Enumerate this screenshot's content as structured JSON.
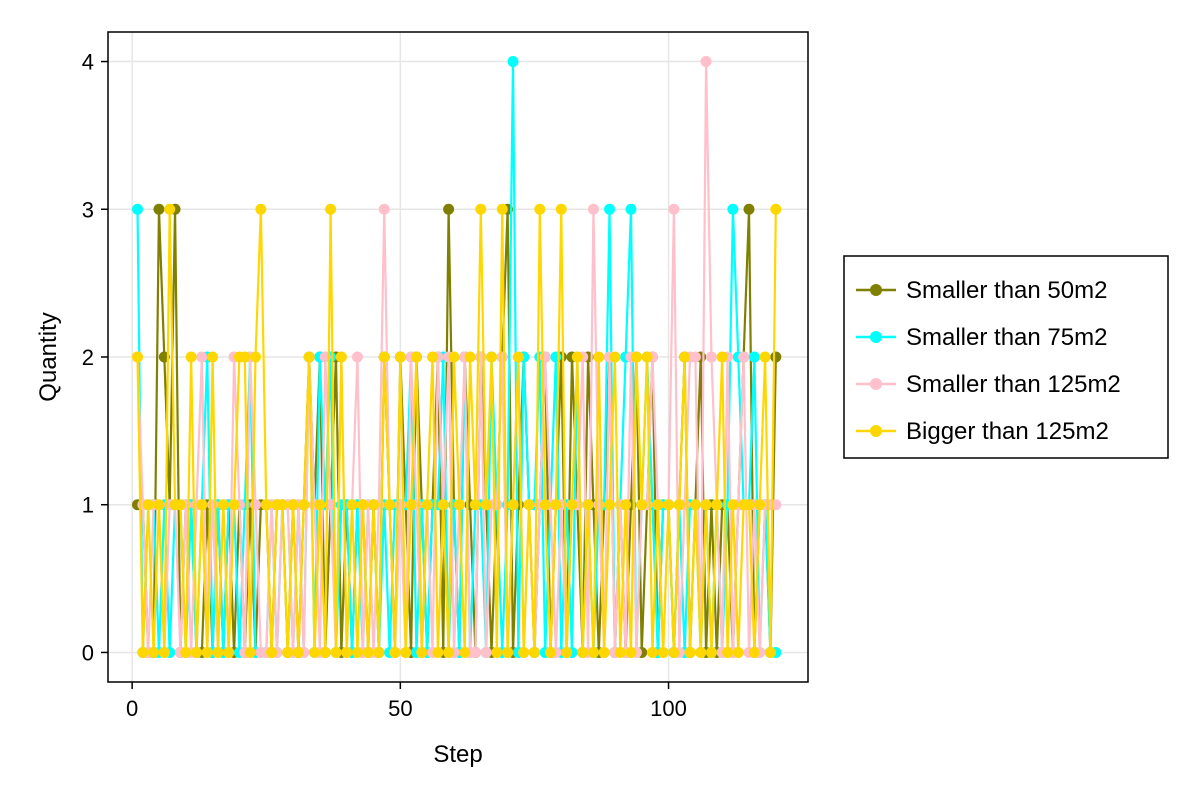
{
  "chart_data": {
    "type": "line",
    "title": "",
    "xlabel": "Step",
    "ylabel": "Quantity",
    "xlim": [
      -4.5,
      126
    ],
    "ylim": [
      -0.2,
      4.2
    ],
    "xticks": [
      0,
      50,
      100
    ],
    "yticks": [
      0,
      1,
      2,
      3,
      4
    ],
    "grid": true,
    "legend_position": "right",
    "x": [
      1,
      2,
      3,
      4,
      5,
      6,
      7,
      8,
      9,
      10,
      11,
      12,
      13,
      14,
      15,
      16,
      17,
      18,
      19,
      20,
      21,
      22,
      23,
      24,
      25,
      26,
      27,
      28,
      29,
      30,
      31,
      32,
      33,
      34,
      35,
      36,
      37,
      38,
      39,
      40,
      41,
      42,
      43,
      44,
      45,
      46,
      47,
      48,
      49,
      50,
      51,
      52,
      53,
      54,
      55,
      56,
      57,
      58,
      59,
      60,
      61,
      62,
      63,
      64,
      65,
      66,
      67,
      68,
      69,
      70,
      71,
      72,
      73,
      74,
      75,
      76,
      77,
      78,
      79,
      80,
      81,
      82,
      83,
      84,
      85,
      86,
      87,
      88,
      89,
      90,
      91,
      92,
      93,
      94,
      95,
      96,
      97,
      98,
      99,
      100,
      101,
      102,
      103,
      104,
      105,
      106,
      107,
      108,
      109,
      110,
      111,
      112,
      113,
      114,
      115,
      116,
      117,
      118,
      119,
      120
    ],
    "series": [
      {
        "name": "Smaller than 50m2",
        "color": "#808000",
        "values": [
          1,
          1,
          0,
          0,
          3,
          2,
          1,
          3,
          0,
          1,
          1,
          0,
          0,
          1,
          0,
          1,
          0,
          1,
          0,
          1,
          0,
          1,
          0,
          1,
          1,
          0,
          1,
          1,
          0,
          1,
          0,
          1,
          2,
          1,
          2,
          0,
          1,
          2,
          0,
          1,
          0,
          1,
          1,
          0,
          1,
          0,
          2,
          1,
          0,
          2,
          1,
          0,
          2,
          1,
          0,
          1,
          2,
          0,
          3,
          1,
          0,
          2,
          1,
          0,
          2,
          1,
          0,
          1,
          2,
          3,
          0,
          1,
          2,
          1,
          0,
          1,
          2,
          0,
          1,
          2,
          0,
          2,
          1,
          0,
          2,
          1,
          0,
          1,
          2,
          0,
          1,
          0,
          1,
          2,
          0,
          1,
          2,
          0,
          1,
          1,
          0,
          1,
          2,
          0,
          1,
          2,
          0,
          1,
          0,
          1,
          1,
          0,
          1,
          2,
          3,
          0,
          1,
          1,
          0,
          2
        ]
      },
      {
        "name": "Smaller than 75m2",
        "color": "#00FFFF",
        "values": [
          3,
          0,
          1,
          1,
          0,
          1,
          0,
          1,
          1,
          0,
          1,
          0,
          1,
          2,
          0,
          1,
          0,
          1,
          1,
          0,
          1,
          2,
          0,
          0,
          0,
          1,
          0,
          1,
          1,
          0,
          1,
          0,
          2,
          0,
          2,
          1,
          2,
          0,
          1,
          1,
          0,
          1,
          0,
          1,
          1,
          0,
          1,
          0,
          1,
          1,
          1,
          2,
          0,
          1,
          0,
          1,
          1,
          2,
          0,
          1,
          0,
          2,
          0,
          1,
          1,
          0,
          2,
          1,
          0,
          1,
          4,
          0,
          2,
          1,
          1,
          2,
          0,
          1,
          2,
          0,
          1,
          0,
          2,
          0,
          1,
          0,
          1,
          1,
          3,
          0,
          1,
          2,
          3,
          0,
          1,
          2,
          1,
          0,
          1,
          1,
          0,
          1,
          0,
          1,
          1,
          0,
          1,
          0,
          1,
          0,
          1,
          3,
          2,
          1,
          1,
          2,
          0,
          1,
          0,
          0
        ]
      },
      {
        "name": "Smaller than 125m2",
        "color": "#FFC0CB",
        "values": [
          2,
          1,
          0,
          1,
          1,
          0,
          1,
          1,
          0,
          1,
          0,
          1,
          2,
          0,
          1,
          0,
          1,
          0,
          2,
          1,
          0,
          2,
          1,
          0,
          0,
          1,
          0,
          1,
          1,
          0,
          1,
          0,
          2,
          1,
          0,
          2,
          1,
          0,
          2,
          0,
          1,
          2,
          0,
          1,
          0,
          1,
          3,
          1,
          0,
          1,
          0,
          2,
          1,
          0,
          1,
          0,
          2,
          1,
          2,
          0,
          1,
          2,
          0,
          0,
          2,
          0,
          1,
          1,
          2,
          0,
          1,
          2,
          0,
          1,
          0,
          1,
          2,
          1,
          0,
          1,
          0,
          1,
          1,
          2,
          0,
          3,
          1,
          0,
          2,
          0,
          1,
          0,
          2,
          0,
          1,
          1,
          2,
          1,
          0,
          1,
          3,
          0,
          1,
          2,
          2,
          0,
          4,
          2,
          1,
          0,
          2,
          0,
          1,
          2,
          0,
          1,
          0,
          1,
          1,
          1
        ]
      },
      {
        "name": "Bigger than 125m2",
        "color": "#FFD700",
        "values": [
          2,
          0,
          1,
          0,
          1,
          0,
          3,
          1,
          1,
          0,
          2,
          0,
          1,
          0,
          2,
          0,
          1,
          0,
          1,
          2,
          2,
          0,
          2,
          3,
          1,
          0,
          1,
          1,
          0,
          1,
          0,
          1,
          2,
          0,
          1,
          0,
          3,
          0,
          2,
          0,
          1,
          0,
          1,
          0,
          1,
          0,
          2,
          1,
          0,
          2,
          0,
          1,
          2,
          0,
          1,
          2,
          0,
          1,
          0,
          2,
          1,
          0,
          2,
          1,
          3,
          1,
          2,
          0,
          3,
          0,
          1,
          2,
          0,
          1,
          0,
          3,
          1,
          0,
          1,
          3,
          0,
          1,
          2,
          0,
          1,
          0,
          2,
          0,
          1,
          2,
          0,
          1,
          0,
          2,
          1,
          2,
          0,
          1,
          0,
          1,
          0,
          1,
          2,
          0,
          1,
          0,
          1,
          0,
          1,
          2,
          0,
          1,
          0,
          1,
          1,
          0,
          1,
          2,
          0,
          3
        ]
      }
    ]
  }
}
